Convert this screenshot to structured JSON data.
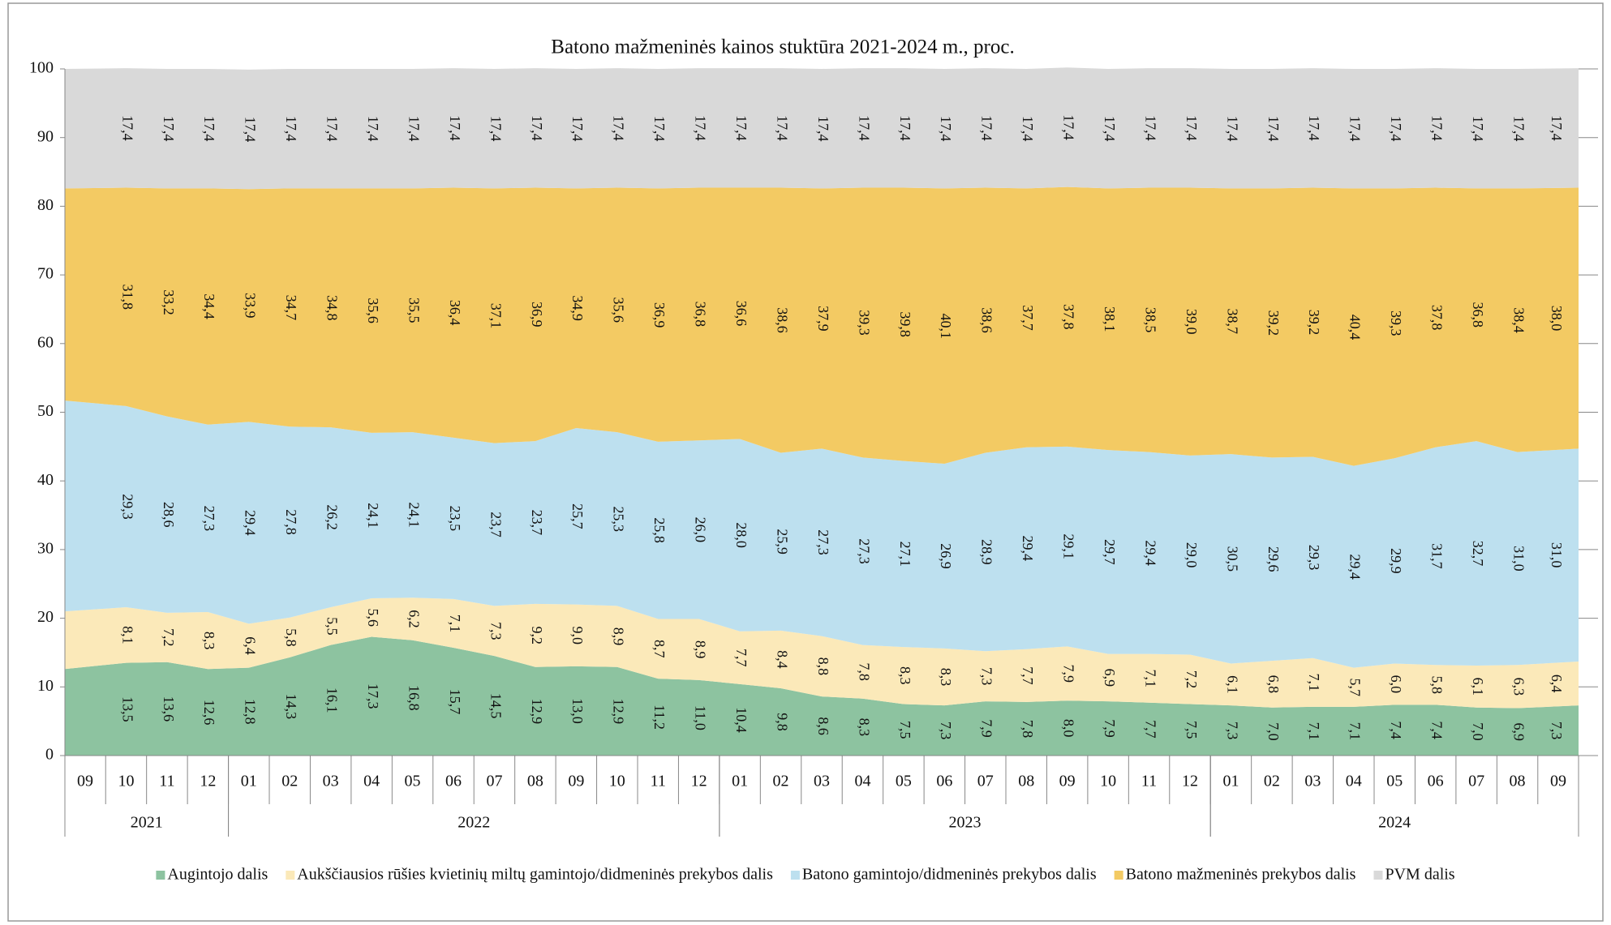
{
  "chart_data": {
    "type": "stacked_area",
    "title": "Batono mažmeninės  kainos stuktūra 2021-2024 m., proc.",
    "categories": [
      "09",
      "10",
      "11",
      "12",
      "01",
      "02",
      "03",
      "04",
      "05",
      "06",
      "07",
      "08",
      "09",
      "10",
      "11",
      "12",
      "01",
      "02",
      "03",
      "04",
      "05",
      "06",
      "07",
      "08",
      "09",
      "10",
      "11",
      "12",
      "01",
      "02",
      "03",
      "04",
      "05",
      "06",
      "07",
      "08",
      "09"
    ],
    "year_groups": [
      {
        "label": "2021",
        "size": 4
      },
      {
        "label": "2022",
        "size": 12
      },
      {
        "label": "2023",
        "size": 12
      },
      {
        "label": "2024",
        "size": 9
      }
    ],
    "ylim": [
      0,
      100
    ],
    "yticks": [
      0,
      10,
      20,
      30,
      40,
      50,
      60,
      70,
      80,
      90,
      100
    ],
    "legend": "bottom",
    "series": [
      {
        "name": "Augintojo dalis",
        "color": "#8dc3a0",
        "values": [
          12.6,
          13.5,
          13.6,
          12.6,
          12.8,
          14.3,
          16.1,
          17.3,
          16.8,
          15.7,
          14.5,
          12.9,
          13.0,
          12.9,
          11.2,
          11.0,
          10.4,
          9.8,
          8.6,
          8.3,
          7.5,
          7.3,
          7.9,
          7.8,
          8.0,
          7.9,
          7.7,
          7.5,
          7.3,
          7.0,
          7.1,
          7.1,
          7.4,
          7.4,
          7.0,
          6.9,
          7.3
        ],
        "value_labels": [
          null,
          "13,5",
          "13,6",
          "12,6",
          "12,8",
          "14,3",
          "16,1",
          "17,3",
          "16,8",
          "15,7",
          "14,5",
          "12,9",
          "13,0",
          "12,9",
          "11,2",
          "11,0",
          "10,4",
          "9,8",
          "8,6",
          "8,3",
          "7,5",
          "7,3",
          "7,9",
          "7,8",
          "8,0",
          "7,9",
          "7,7",
          "7,5",
          "7,3",
          "7,0",
          "7,1",
          "7,1",
          "7,4",
          "7,4",
          "7,0",
          "6,9",
          "7,3"
        ]
      },
      {
        "name": "Aukščiausios rūšies kvietinių miltų gamintojo/didmeninės prekybos dalis",
        "color": "#fbe9b9",
        "values": [
          8.4,
          8.1,
          7.2,
          8.3,
          6.4,
          5.8,
          5.5,
          5.6,
          6.2,
          7.1,
          7.3,
          9.2,
          9.0,
          8.9,
          8.7,
          8.9,
          7.7,
          8.4,
          8.8,
          7.8,
          8.3,
          8.3,
          7.3,
          7.7,
          7.9,
          6.9,
          7.1,
          7.2,
          6.1,
          6.8,
          7.1,
          5.7,
          6.0,
          5.8,
          6.1,
          6.3,
          6.4
        ],
        "value_labels": [
          null,
          "8,1",
          "7,2",
          "8,3",
          "6,4",
          "5,8",
          "5,5",
          "5,6",
          "6,2",
          "7,1",
          "7,3",
          "9,2",
          "9,0",
          "8,9",
          "8,7",
          "8,9",
          "7,7",
          "8,4",
          "8,8",
          "7,8",
          "8,3",
          "8,3",
          "7,3",
          "7,7",
          "7,9",
          "6,9",
          "7,1",
          "7,2",
          "6,1",
          "6,8",
          "7,1",
          "5,7",
          "6,0",
          "5,8",
          "6,1",
          "6,3",
          "6,4"
        ]
      },
      {
        "name": "Batono gamintojo/didmeninės prekybos dalis",
        "color": "#bde0ef",
        "values": [
          30.7,
          29.3,
          28.6,
          27.3,
          29.4,
          27.8,
          26.2,
          24.1,
          24.1,
          23.5,
          23.7,
          23.7,
          25.7,
          25.3,
          25.8,
          26.0,
          28.0,
          25.9,
          27.3,
          27.3,
          27.1,
          26.9,
          28.9,
          29.4,
          29.1,
          29.7,
          29.4,
          29.0,
          30.5,
          29.6,
          29.3,
          29.4,
          29.9,
          31.7,
          32.7,
          31.0,
          31.0
        ],
        "value_labels": [
          null,
          "29,3",
          "28,6",
          "27,3",
          "29,4",
          "27,8",
          "26,2",
          "24,1",
          "24,1",
          "23,5",
          "23,7",
          "23,7",
          "25,7",
          "25,3",
          "25,8",
          "26,0",
          "28,0",
          "25,9",
          "27,3",
          "27,3",
          "27,1",
          "26,9",
          "28,9",
          "29,4",
          "29,1",
          "29,7",
          "29,4",
          "29,0",
          "30,5",
          "29,6",
          "29,3",
          "29,4",
          "29,9",
          "31,7",
          "32,7",
          "31,0",
          "31,0"
        ]
      },
      {
        "name": "Batono mažmeninės prekybos dalis",
        "color": "#f3ca63",
        "values": [
          30.9,
          31.8,
          33.2,
          34.4,
          33.9,
          34.7,
          34.8,
          35.6,
          35.5,
          36.4,
          37.1,
          36.9,
          34.9,
          35.6,
          36.9,
          36.8,
          36.6,
          38.6,
          37.9,
          39.3,
          39.8,
          40.1,
          38.6,
          37.7,
          37.8,
          38.1,
          38.5,
          39.0,
          38.7,
          39.2,
          39.2,
          40.4,
          39.3,
          37.8,
          36.8,
          38.4,
          38.0
        ],
        "value_labels": [
          null,
          "31,8",
          "33,2",
          "34,4",
          "33,9",
          "34,7",
          "34,8",
          "35,6",
          "35,5",
          "36,4",
          "37,1",
          "36,9",
          "34,9",
          "35,6",
          "36,9",
          "36,8",
          "36,6",
          "38,6",
          "37,9",
          "39,3",
          "39,8",
          "40,1",
          "38,6",
          "37,7",
          "37,8",
          "38,1",
          "38,5",
          "39,0",
          "38,7",
          "39,2",
          "39,2",
          "40,4",
          "39,3",
          "37,8",
          "36,8",
          "38,4",
          "38,0"
        ]
      },
      {
        "name": "PVM dalis",
        "color": "#d9d9d9",
        "values": [
          17.4,
          17.4,
          17.4,
          17.4,
          17.4,
          17.4,
          17.4,
          17.4,
          17.4,
          17.4,
          17.4,
          17.4,
          17.4,
          17.4,
          17.4,
          17.4,
          17.4,
          17.4,
          17.4,
          17.4,
          17.4,
          17.4,
          17.4,
          17.4,
          17.4,
          17.4,
          17.4,
          17.4,
          17.4,
          17.4,
          17.4,
          17.4,
          17.4,
          17.4,
          17.4,
          17.4,
          17.4
        ],
        "value_labels": [
          null,
          "17,4",
          "17,4",
          "17,4",
          "17,4",
          "17,4",
          "17,4",
          "17,4",
          "17,4",
          "17,4",
          "17,4",
          "17,4",
          "17,4",
          "17,4",
          "17,4",
          "17,4",
          "17,4",
          "17,4",
          "17,4",
          "17,4",
          "17,4",
          "17,4",
          "17,4",
          "17,4",
          "17,4",
          "17,4",
          "17,4",
          "17,4",
          "17,4",
          "17,4",
          "17,4",
          "17,4",
          "17,4",
          "17,4",
          "17,4",
          "17,4",
          "17,4"
        ]
      }
    ]
  }
}
